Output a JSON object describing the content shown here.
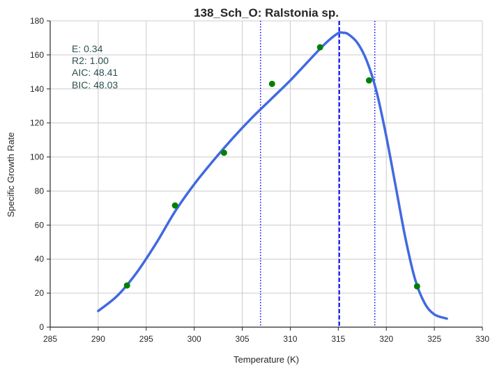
{
  "chart_data": {
    "type": "scatter",
    "title": "138_Sch_O: Ralstonia sp.",
    "xlabel": "Temperature (K)",
    "ylabel": "Specific Growth Rate",
    "xlim": [
      285,
      330
    ],
    "ylim": [
      0,
      180
    ],
    "xticks": [
      285,
      290,
      295,
      300,
      305,
      310,
      315,
      320,
      325,
      330
    ],
    "yticks": [
      0,
      20,
      40,
      60,
      80,
      100,
      120,
      140,
      160,
      180
    ],
    "grid": true,
    "annotations": [
      "E:  0.34",
      "R2:  1.00",
      "AIC: 48.41",
      "BIC: 48.03"
    ],
    "observed": {
      "x": [
        293.0,
        298.0,
        303.1,
        308.1,
        313.1,
        318.2,
        323.2
      ],
      "y": [
        24.5,
        71.5,
        102.5,
        143.0,
        164.5,
        145.0,
        24.0
      ],
      "color": "#008000"
    },
    "fit": {
      "x": [
        290,
        292,
        294,
        296,
        298,
        300,
        302,
        304,
        306,
        308,
        310,
        312,
        313,
        314,
        315,
        315.5,
        316,
        317,
        318,
        319,
        320,
        321,
        322,
        323,
        324,
        325,
        326.3
      ],
      "y": [
        9.5,
        18.5,
        32,
        49,
        68,
        84,
        98,
        111,
        123,
        134,
        145,
        157,
        163,
        168.5,
        172.8,
        173,
        172.3,
        167,
        156,
        138,
        112,
        82,
        52,
        28,
        14,
        7.5,
        5
      ],
      "color": "#4169e1"
    },
    "vlines": [
      {
        "x": 306.9,
        "style": "dotted",
        "color": "#0000ff"
      },
      {
        "x": 315.1,
        "style": "dashed",
        "color": "#0000ff"
      },
      {
        "x": 318.8,
        "style": "dotted",
        "color": "#0000ff"
      }
    ]
  }
}
